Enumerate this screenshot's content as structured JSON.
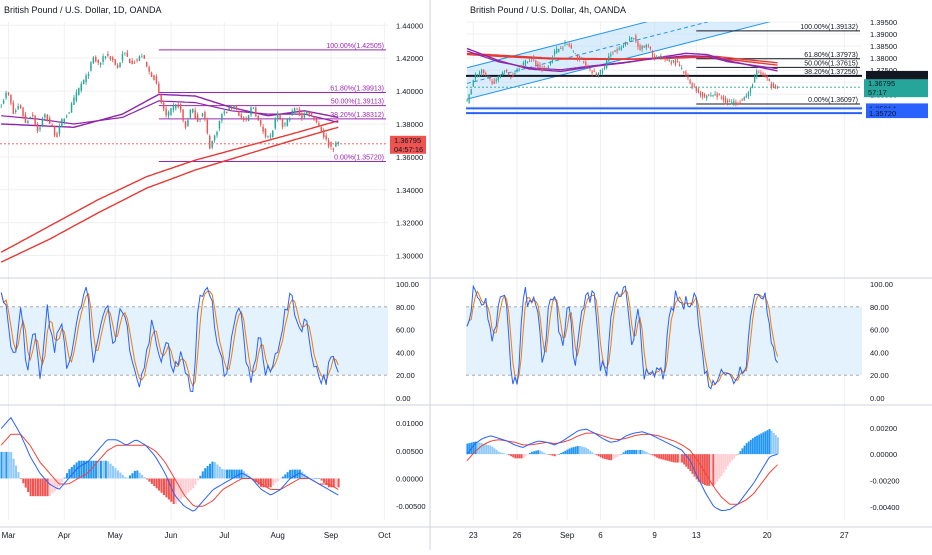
{
  "page": {
    "background": "#ffffff",
    "grid_color": "#eef0f3",
    "divider_color": "#cfd3dc"
  },
  "chart_data": [
    {
      "type": "candlestick",
      "title": "British Pound / U.S. Dollar, 1D, OANDA",
      "ylim": [
        1.29,
        1.442
      ],
      "yticks": [
        "1.44000",
        "1.42000",
        "1.40000",
        "1.38000",
        "1.36000",
        "1.34000",
        "1.32000",
        "1.30000"
      ],
      "ytick_values": [
        1.44,
        1.42,
        1.4,
        1.38,
        1.36,
        1.34,
        1.32,
        1.3
      ],
      "x_count": 140,
      "xticks": [
        {
          "label": "Mar",
          "i": 3
        },
        {
          "label": "Apr",
          "i": 26
        },
        {
          "label": "May",
          "i": 47
        },
        {
          "label": "Jun",
          "i": 70
        },
        {
          "label": "Jul",
          "i": 92
        },
        {
          "label": "Aug",
          "i": 114
        },
        {
          "label": "Sep",
          "i": 136
        },
        {
          "label": "Oct",
          "i": 158
        }
      ],
      "x_total": 160,
      "colors": {
        "up": "#26a69a",
        "down": "#ef5350",
        "ma_red": "#e53935",
        "ma_purple": "#8e24aa",
        "fib": "#9c27b0"
      },
      "ohlc_anchors": [
        1.392,
        1.4,
        1.386,
        1.392,
        1.38,
        1.387,
        1.375,
        1.386,
        1.38,
        1.372,
        1.383,
        1.387,
        1.396,
        1.404,
        1.409,
        1.42,
        1.416,
        1.422,
        1.42,
        1.414,
        1.424,
        1.418,
        1.418,
        1.422,
        1.412,
        1.408,
        1.394,
        1.384,
        1.39,
        1.392,
        1.377,
        1.39,
        1.382,
        1.387,
        1.366,
        1.374,
        1.386,
        1.388,
        1.392,
        1.384,
        1.381,
        1.392,
        1.381,
        1.374,
        1.372,
        1.386,
        1.378,
        1.384,
        1.39,
        1.384,
        1.388,
        1.384,
        1.378,
        1.37,
        1.365,
        1.369
      ],
      "anchor_span": [
        0,
        139
      ],
      "ma_red": {
        "x": [
          0,
          20,
          40,
          60,
          80,
          100,
          120,
          139
        ],
        "y": [
          1.302,
          1.318,
          1.334,
          1.348,
          1.358,
          1.366,
          1.374,
          1.382
        ]
      },
      "ma_red2": {
        "x": [
          0,
          20,
          40,
          60,
          80,
          100,
          120,
          139
        ],
        "y": [
          1.296,
          1.31,
          1.326,
          1.341,
          1.352,
          1.361,
          1.37,
          1.378
        ]
      },
      "ma_purple": {
        "x": [
          0,
          15,
          30,
          50,
          65,
          80,
          95,
          110,
          125,
          139
        ],
        "y": [
          1.38,
          1.379,
          1.378,
          1.386,
          1.398,
          1.397,
          1.39,
          1.385,
          1.388,
          1.384
        ]
      },
      "ma_purple2": {
        "x": [
          0,
          15,
          30,
          50,
          65,
          80,
          95,
          110,
          125,
          139
        ],
        "y": [
          1.385,
          1.383,
          1.38,
          1.384,
          1.394,
          1.393,
          1.388,
          1.386,
          1.386,
          1.381
        ]
      },
      "fib_levels": [
        {
          "label": "100.00%(1.42505)",
          "price": 1.42505
        },
        {
          "label": "61.80%(1.39913)",
          "price": 1.39913
        },
        {
          "label": "50.00%(1.39113)",
          "price": 1.39113
        },
        {
          "label": "38.20%(1.38312)",
          "price": 1.38312
        },
        {
          "label": "0.00%(1.35720)",
          "price": 1.3572
        }
      ],
      "fib_x_from": 65,
      "price_label": {
        "value": "1.36795",
        "countdown": "04:57:16",
        "price": 1.36795,
        "color": "#ef5350"
      },
      "stoch": {
        "yticks": [
          "100.00",
          "80.00",
          "60.00",
          "40.00",
          "20.00",
          "0.00"
        ],
        "ytick_values": [
          100,
          80,
          60,
          40,
          20,
          0
        ],
        "upper": 80,
        "lower": 20,
        "k_color": "#2962ff",
        "d_color": "#f57c00",
        "k_anchors": [
          90,
          70,
          30,
          80,
          20,
          60,
          15,
          85,
          35,
          70,
          20,
          55,
          85,
          95,
          30,
          65,
          90,
          40,
          80,
          60,
          20,
          10,
          45,
          70,
          30,
          55,
          20,
          40,
          15,
          10,
          90,
          95,
          80,
          40,
          20,
          55,
          85,
          30,
          15,
          60,
          20,
          25,
          50,
          75,
          90,
          60,
          70,
          40,
          20,
          15,
          35,
          20
        ]
      },
      "macd": {
        "yticks": [
          "0.01000",
          "0.00500",
          "0.00000",
          "-0.00500"
        ],
        "ytick_values": [
          0.01,
          0.005,
          0,
          -0.005
        ],
        "ylim": [
          -0.0075,
          0.012
        ],
        "macd_anchors": [
          0.009,
          0.011,
          0.008,
          0.004,
          0.001,
          -0.001,
          -0.002,
          0.0,
          0.002,
          0.003,
          0.005,
          0.007,
          0.007,
          0.006,
          0.007,
          0.006,
          0.004,
          0.001,
          -0.003,
          -0.005,
          -0.006,
          -0.004,
          -0.002,
          -0.001,
          0.0,
          0.001,
          0.0,
          -0.002,
          -0.003,
          -0.002,
          0.0,
          0.001,
          0.0,
          -0.001,
          -0.002,
          -0.003
        ],
        "signal_anchors": [
          0.006,
          0.008,
          0.008,
          0.006,
          0.003,
          0.001,
          -0.001,
          -0.001,
          0.0,
          0.001,
          0.003,
          0.005,
          0.006,
          0.006,
          0.006,
          0.006,
          0.005,
          0.003,
          0.0,
          -0.003,
          -0.005,
          -0.005,
          -0.004,
          -0.002,
          -0.001,
          0.0,
          0.0,
          -0.001,
          -0.002,
          -0.002,
          -0.001,
          0.0,
          0.0,
          -0.001,
          -0.001,
          -0.002
        ],
        "macd_color": "#2962ff",
        "signal_color": "#f44336"
      }
    },
    {
      "type": "candlestick",
      "title": "British Pound / U.S. Dollar, 4h, OANDA",
      "ylim": [
        1.29,
        1.395
      ],
      "yticks": [
        "1.39500",
        "1.39000",
        "1.38500",
        "1.38000",
        "1.37500",
        "1.37000",
        "1.36500",
        "1.36000"
      ],
      "ytick_values": [
        1.395,
        1.39,
        1.385,
        1.38,
        1.375,
        1.37,
        1.365,
        1.36
      ],
      "x_count": 150,
      "xticks": [
        {
          "label": "23",
          "i": 3
        },
        {
          "label": "26",
          "i": 24
        },
        {
          "label": "Sep",
          "i": 48
        },
        {
          "label": "6",
          "i": 64
        },
        {
          "label": "9",
          "i": 90
        },
        {
          "label": "13",
          "i": 110
        },
        {
          "label": "20",
          "i": 144
        },
        {
          "label": "27",
          "i": 181
        }
      ],
      "x_total": 190,
      "colors": {
        "up": "#26a69a",
        "down": "#ef5350",
        "ma_red": "#e53935",
        "ma_purple": "#8e24aa",
        "fib": "#131722",
        "channel": "#2196f3",
        "channel_fill": "#bbdefb"
      },
      "ohlc_anchors": [
        1.362,
        1.3725,
        1.3745,
        1.371,
        1.37,
        1.3755,
        1.372,
        1.376,
        1.378,
        1.38,
        1.376,
        1.376,
        1.382,
        1.385,
        1.386,
        1.381,
        1.379,
        1.3745,
        1.373,
        1.376,
        1.383,
        1.383,
        1.386,
        1.389,
        1.384,
        1.385,
        1.38,
        1.38,
        1.379,
        1.378,
        1.374,
        1.369,
        1.366,
        1.364,
        1.365,
        1.364,
        1.362,
        1.3615,
        1.3628,
        1.365,
        1.374,
        1.373,
        1.369,
        1.368
      ],
      "anchor_span": [
        0,
        149
      ],
      "channel": {
        "lower": {
          "x0": 0,
          "y0": 1.363,
          "x1": 190,
          "y1": 1.405
        },
        "upper": {
          "x0": 0,
          "y0": 1.376,
          "x1": 190,
          "y1": 1.418
        },
        "mid": {
          "x0": 0,
          "y0": 1.3695,
          "x1": 190,
          "y1": 1.4115
        }
      },
      "ma_red": {
        "x": [
          0,
          20,
          40,
          60,
          80,
          100,
          110,
          120,
          130,
          150
        ],
        "y": [
          1.382,
          1.381,
          1.38,
          1.3798,
          1.3797,
          1.3803,
          1.3808,
          1.3807,
          1.3797,
          1.378
        ]
      },
      "ma_red2": {
        "x": [
          0,
          20,
          40,
          60,
          80,
          100,
          110,
          120,
          130,
          150
        ],
        "y": [
          1.3815,
          1.3805,
          1.3797,
          1.3795,
          1.3795,
          1.38,
          1.3803,
          1.38,
          1.379,
          1.377
        ]
      },
      "ma_purple": {
        "x": [
          0,
          15,
          30,
          45,
          60,
          75,
          90,
          105,
          115,
          125,
          150
        ],
        "y": [
          1.384,
          1.379,
          1.3755,
          1.3745,
          1.3765,
          1.378,
          1.38,
          1.382,
          1.3815,
          1.379,
          1.3745
        ]
      },
      "ma_purple2": {
        "x": [
          0,
          15,
          30,
          45,
          60,
          75,
          90,
          105,
          115,
          125,
          150
        ],
        "y": [
          1.383,
          1.3785,
          1.376,
          1.3752,
          1.3768,
          1.3782,
          1.3798,
          1.381,
          1.3808,
          1.3785,
          1.3755
        ]
      },
      "fib_levels": [
        {
          "label": "100.00%(1.39132)",
          "price": 1.39132
        },
        {
          "label": "61.80%(1.37973)",
          "price": 1.37973
        },
        {
          "label": "50.00%(1.37615)",
          "price": 1.37615
        },
        {
          "label": "38.20%(1.37256)",
          "price": 1.37256
        },
        {
          "label": "0.00%(1.36097)",
          "price": 1.36097
        }
      ],
      "fib_x_from": 110,
      "hlines": [
        {
          "price": 1.37263,
          "label": "1.37263",
          "color": "#131722",
          "width": 2
        },
        {
          "price": 1.35914,
          "label": "1.35914",
          "color": "#2962ff",
          "width": 2
        },
        {
          "price": 1.3572,
          "label": "1.35720",
          "color": "#2962ff",
          "width": 2
        }
      ],
      "price_label": {
        "value": "1.36795",
        "countdown": "57:17",
        "price": 1.36795,
        "color": "#26a69a"
      },
      "stoch": {
        "yticks": [
          "100.00",
          "80.00",
          "60.00",
          "40.00",
          "20.00",
          "0.00"
        ],
        "ytick_values": [
          100,
          80,
          60,
          40,
          20,
          0
        ],
        "upper": 80,
        "lower": 20,
        "k_color": "#2962ff",
        "d_color": "#f57c00",
        "k_anchors": [
          60,
          95,
          80,
          90,
          40,
          85,
          95,
          20,
          15,
          95,
          80,
          90,
          20,
          95,
          85,
          40,
          90,
          25,
          80,
          85,
          95,
          30,
          20,
          85,
          90,
          95,
          40,
          85,
          20,
          15,
          25,
          20,
          70,
          90,
          80,
          85,
          95,
          40,
          15,
          10,
          30,
          20,
          15,
          25,
          30,
          85,
          95,
          90,
          45,
          35
        ]
      },
      "macd": {
        "yticks": [
          "0.00200",
          "0.00000",
          "-0.00200",
          "-0.00400"
        ],
        "ytick_values": [
          0.002,
          0,
          -0.002,
          -0.004
        ],
        "ylim": [
          -0.005,
          0.0032
        ],
        "macd_anchors": [
          0.0,
          0.0008,
          0.0012,
          0.0014,
          0.0012,
          0.001,
          0.0007,
          0.0005,
          0.0008,
          0.001,
          0.0009,
          0.0007,
          0.001,
          0.0014,
          0.0018,
          0.0019,
          0.0016,
          0.0012,
          0.0009,
          0.001,
          0.0014,
          0.0016,
          0.0017,
          0.0015,
          0.0012,
          0.0009,
          0.0006,
          0.0003,
          -0.0005,
          -0.0018,
          -0.003,
          -0.004,
          -0.0043,
          -0.0042,
          -0.0038,
          -0.003,
          -0.0022,
          -0.0012,
          -0.0002,
          0.0
        ],
        "signal_anchors": [
          -0.0005,
          0.0002,
          0.0007,
          0.001,
          0.0011,
          0.001,
          0.0009,
          0.0007,
          0.0007,
          0.0008,
          0.0009,
          0.0008,
          0.0009,
          0.0011,
          0.0014,
          0.0016,
          0.0016,
          0.0014,
          0.0012,
          0.0011,
          0.0012,
          0.0014,
          0.0015,
          0.0015,
          0.0014,
          0.0012,
          0.001,
          0.0007,
          0.0003,
          -0.0005,
          -0.0015,
          -0.0025,
          -0.0033,
          -0.0038,
          -0.0038,
          -0.0035,
          -0.003,
          -0.0022,
          -0.0014,
          -0.0008
        ],
        "macd_color": "#2962ff",
        "signal_color": "#f44336"
      }
    }
  ]
}
